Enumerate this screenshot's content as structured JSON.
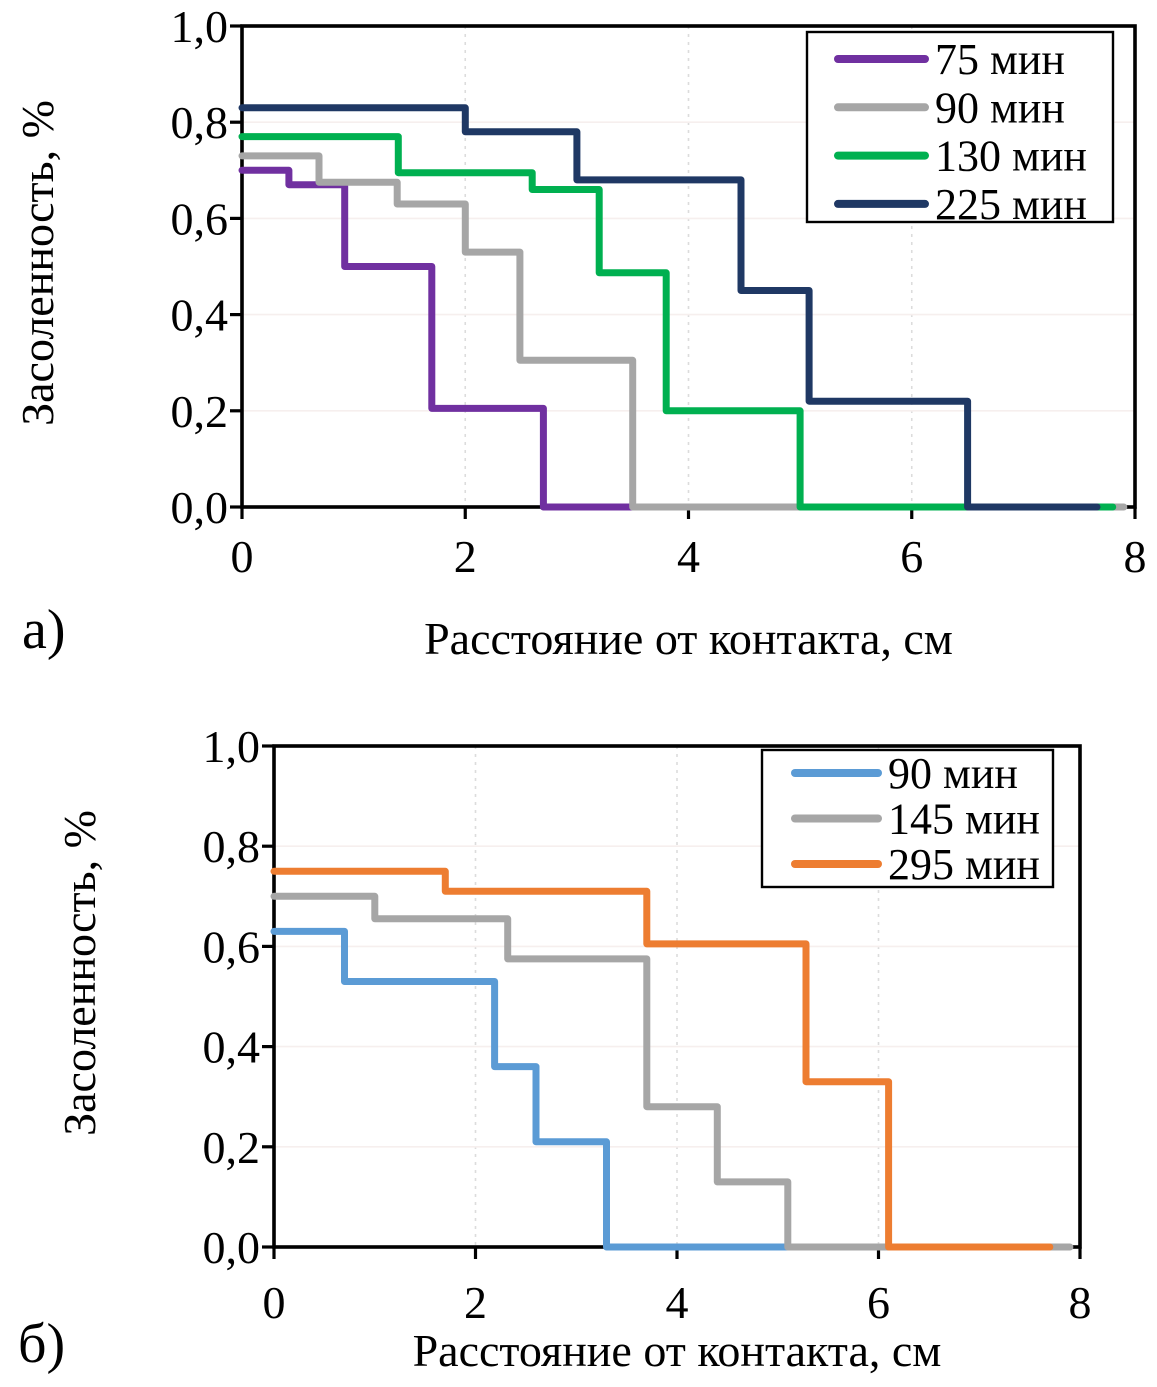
{
  "figure": {
    "panel_a_label": "а)",
    "panel_b_label": "б)"
  },
  "colors": {
    "axis": "#000000",
    "grid_vertical": "#dcdcdc",
    "grid_horizontal": "#f6efee",
    "legend_border": "#000000",
    "background": "#ffffff"
  },
  "chart_data": [
    {
      "id": "a",
      "type": "line",
      "line_style": "step-post",
      "panel_label": "а)",
      "xlabel": "Расстояние от контакта, см",
      "ylabel": "Засоленность, %",
      "xlim": [
        0,
        8
      ],
      "ylim": [
        0.0,
        1.0
      ],
      "x_tick_values": [
        0,
        2,
        4,
        6,
        8
      ],
      "x_tick_labels": [
        "0",
        "2",
        "4",
        "6",
        "8"
      ],
      "y_tick_values": [
        0,
        0.2,
        0.4,
        0.6,
        0.8,
        1.0
      ],
      "y_tick_labels": [
        "0,0",
        "0,2",
        "0,4",
        "0,6",
        "0,8",
        "1,0"
      ],
      "grid": true,
      "legend_position": "top-right",
      "series": [
        {
          "name": "75 мин",
          "color": "#7030A0",
          "points": [
            [
              0,
              0.7
            ],
            [
              0.42,
              0.7
            ],
            [
              0.42,
              0.67
            ],
            [
              0.92,
              0.67
            ],
            [
              0.92,
              0.5
            ],
            [
              1.7,
              0.5
            ],
            [
              1.7,
              0.205
            ],
            [
              2.7,
              0.205
            ],
            [
              2.7,
              0
            ],
            [
              3.6,
              0
            ]
          ]
        },
        {
          "name": "90 мин",
          "color": "#A6A6A6",
          "points": [
            [
              0,
              0.73
            ],
            [
              0.69,
              0.73
            ],
            [
              0.69,
              0.675
            ],
            [
              1.39,
              0.675
            ],
            [
              1.39,
              0.63
            ],
            [
              2.0,
              0.63
            ],
            [
              2.0,
              0.53
            ],
            [
              2.49,
              0.53
            ],
            [
              2.49,
              0.305
            ],
            [
              3.5,
              0.305
            ],
            [
              3.5,
              0
            ],
            [
              7.9,
              0
            ]
          ]
        },
        {
          "name": "130 мин",
          "color": "#00B050",
          "points": [
            [
              0,
              0.77
            ],
            [
              1.4,
              0.77
            ],
            [
              1.4,
              0.695
            ],
            [
              2.6,
              0.695
            ],
            [
              2.6,
              0.66
            ],
            [
              3.2,
              0.66
            ],
            [
              3.2,
              0.487
            ],
            [
              3.8,
              0.487
            ],
            [
              3.8,
              0.2
            ],
            [
              5.0,
              0.2
            ],
            [
              5.0,
              0
            ],
            [
              7.8,
              0
            ]
          ]
        },
        {
          "name": "225 мин",
          "color": "#1F3864",
          "points": [
            [
              0,
              0.83
            ],
            [
              2.0,
              0.83
            ],
            [
              2.0,
              0.78
            ],
            [
              3.0,
              0.78
            ],
            [
              3.0,
              0.68
            ],
            [
              4.47,
              0.68
            ],
            [
              4.47,
              0.45
            ],
            [
              5.08,
              0.45
            ],
            [
              5.08,
              0.22
            ],
            [
              6.5,
              0.22
            ],
            [
              6.5,
              0
            ],
            [
              7.66,
              0
            ]
          ]
        }
      ]
    },
    {
      "id": "b",
      "type": "line",
      "line_style": "step-post",
      "panel_label": "б)",
      "xlabel": "Расстояние от контакта, см",
      "ylabel": "Засоленность, %",
      "xlim": [
        0,
        8
      ],
      "ylim": [
        0.0,
        1.0
      ],
      "x_tick_values": [
        0,
        2,
        4,
        6,
        8
      ],
      "x_tick_labels": [
        "0",
        "2",
        "4",
        "6",
        "8"
      ],
      "y_tick_values": [
        0,
        0.2,
        0.4,
        0.6,
        0.8,
        1.0
      ],
      "y_tick_labels": [
        "0,0",
        "0,2",
        "0,4",
        "0,6",
        "0,8",
        "1,0"
      ],
      "grid": true,
      "legend_position": "top-right",
      "series": [
        {
          "name": "90 мин",
          "color": "#5B9BD5",
          "points": [
            [
              0,
              0.63
            ],
            [
              0.7,
              0.63
            ],
            [
              0.7,
              0.53
            ],
            [
              2.19,
              0.53
            ],
            [
              2.19,
              0.36
            ],
            [
              2.6,
              0.36
            ],
            [
              2.6,
              0.21
            ],
            [
              3.3,
              0.21
            ],
            [
              3.3,
              0
            ],
            [
              5.1,
              0
            ]
          ]
        },
        {
          "name": "145 мин",
          "color": "#A6A6A6",
          "points": [
            [
              0,
              0.7
            ],
            [
              1.0,
              0.7
            ],
            [
              1.0,
              0.655
            ],
            [
              2.32,
              0.655
            ],
            [
              2.32,
              0.575
            ],
            [
              3.7,
              0.575
            ],
            [
              3.7,
              0.28
            ],
            [
              4.4,
              0.28
            ],
            [
              4.4,
              0.13
            ],
            [
              5.1,
              0.13
            ],
            [
              5.1,
              0
            ],
            [
              7.9,
              0
            ]
          ]
        },
        {
          "name": "295 мин",
          "color": "#ED7D31",
          "points": [
            [
              0,
              0.75
            ],
            [
              1.7,
              0.75
            ],
            [
              1.7,
              0.71
            ],
            [
              3.7,
              0.71
            ],
            [
              3.7,
              0.605
            ],
            [
              5.28,
              0.605
            ],
            [
              5.28,
              0.33
            ],
            [
              6.1,
              0.33
            ],
            [
              6.1,
              0
            ],
            [
              7.7,
              0
            ]
          ]
        }
      ]
    }
  ]
}
